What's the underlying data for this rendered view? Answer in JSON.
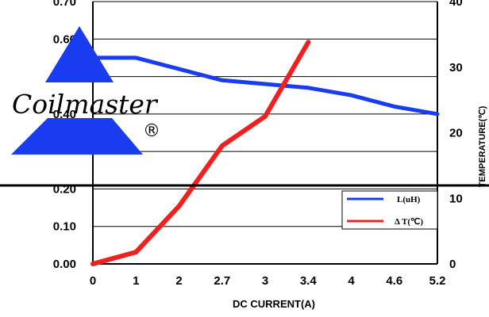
{
  "logo": {
    "text": "Coilmaster",
    "registered": "®"
  },
  "chart_data": {
    "type": "line",
    "xlabel": "DC CURRENT(A)",
    "ylabel": "",
    "y2label": "TEMPERATURE(℃)",
    "categories": [
      "0",
      "1",
      "2",
      "2.7",
      "3",
      "3.4",
      "4",
      "4.6",
      "5.2"
    ],
    "yticks": [
      "0.00",
      "0.10",
      "0.20",
      "",
      "0.40",
      "0",
      "0.60",
      "0.70"
    ],
    "ylim": [
      0,
      0.7
    ],
    "y2ticks": [
      "0",
      "10",
      "20",
      "30",
      "40"
    ],
    "y2lim": [
      0,
      40
    ],
    "grid": true,
    "legend_position": "bottom-right",
    "series": [
      {
        "name": "L(uH)",
        "axis": "left",
        "color": "#1a3cf0",
        "values": [
          0.55,
          0.55,
          0.52,
          0.49,
          0.48,
          0.47,
          0.45,
          0.42,
          0.4
        ]
      },
      {
        "name": "Δ T(℃)",
        "axis": "right",
        "color": "#f02020",
        "values": [
          0,
          1.8,
          8.8,
          18,
          22.5,
          33.8,
          null,
          null,
          null
        ]
      }
    ],
    "colors": {
      "L": "#1a3cf0",
      "dT": "#f02020",
      "logo_blue": "#1a3cf0"
    }
  }
}
